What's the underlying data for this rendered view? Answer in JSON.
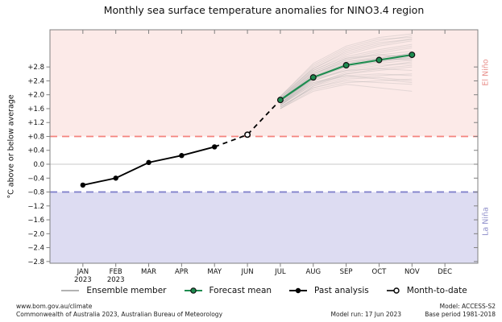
{
  "page": {
    "title": "Monthly sea surface temperature anomalies for NINO3.4 region"
  },
  "chart_data": {
    "type": "line",
    "title": "Monthly sea surface temperature anomalies for NINO3.4 region",
    "xlabel": "",
    "ylabel": "°C above or below average",
    "x_categories": [
      "JAN",
      "FEB",
      "MAR",
      "APR",
      "MAY",
      "JUN",
      "JUL",
      "AUG",
      "SEP",
      "OCT",
      "NOV",
      "DEC"
    ],
    "x_year_sublabels": [
      "2023",
      "2023",
      "",
      "",
      "",
      "",
      "",
      "",
      "",
      "",
      "",
      ""
    ],
    "ytick_values": [
      2.8,
      2.4,
      2.0,
      1.6,
      1.2,
      0.8,
      0.4,
      0.0,
      -0.4,
      -0.8,
      -1.2,
      -1.6,
      -2.0,
      -2.4,
      -2.8
    ],
    "ytick_labels": [
      "+2.8",
      "+2.4",
      "+2.0",
      "+1.6",
      "+1.2",
      "+0.8",
      "+0.4",
      "0.0",
      "−0.4",
      "−0.8",
      "−1.2",
      "−1.6",
      "−2.0",
      "−2.4",
      "−2.8"
    ],
    "ylim": [
      -2.85,
      3.87
    ],
    "grid": "zero-line-only",
    "legend_position": "bottom",
    "colors": {
      "el_nino_fill": "#fceae8",
      "la_nina_fill": "#dddcf2",
      "el_nino_line": "#f4837d",
      "la_nina_line": "#7b7bc9",
      "el_nino_text": "#e8908c",
      "la_nina_text": "#9393cc",
      "forecast_green": "#1e8c50",
      "ensemble_gray": "#aaaaaa",
      "past_black": "#000000",
      "zero_line": "#c8c8c8",
      "axis_border": "#808080"
    },
    "regions": {
      "el_nino": {
        "label": "El Niño",
        "threshold": 0.8
      },
      "la_nina": {
        "label": "La Niña",
        "threshold": -0.8
      }
    },
    "series": [
      {
        "name": "Past analysis",
        "type": "line-marker",
        "x": [
          "JAN",
          "FEB",
          "MAR",
          "APR",
          "MAY"
        ],
        "values": [
          -0.6,
          -0.4,
          0.05,
          0.25,
          0.5
        ]
      },
      {
        "name": "Month-to-date",
        "type": "open-marker",
        "x": [
          "JUN"
        ],
        "values": [
          0.85
        ]
      },
      {
        "name": "Forecast mean",
        "type": "line-marker",
        "x": [
          "JUL",
          "AUG",
          "SEP",
          "OCT",
          "NOV"
        ],
        "values": [
          1.85,
          2.5,
          2.85,
          3.0,
          3.15
        ]
      },
      {
        "name": "Ensemble member",
        "type": "multi-line",
        "x": [
          "JUL",
          "AUG",
          "SEP",
          "OCT",
          "NOV"
        ],
        "members": [
          [
            1.75,
            2.45,
            2.8,
            2.95,
            3.1
          ],
          [
            1.85,
            2.6,
            3.0,
            3.15,
            3.25
          ],
          [
            1.7,
            2.3,
            2.55,
            2.6,
            2.55
          ],
          [
            1.9,
            2.7,
            3.1,
            3.3,
            3.45
          ],
          [
            1.65,
            2.2,
            2.4,
            2.35,
            2.3
          ],
          [
            1.8,
            2.55,
            2.9,
            3.05,
            3.2
          ],
          [
            1.95,
            2.75,
            3.2,
            3.45,
            3.6
          ],
          [
            1.7,
            2.4,
            2.7,
            2.85,
            2.9
          ],
          [
            1.6,
            2.1,
            2.3,
            2.2,
            2.1
          ],
          [
            1.85,
            2.65,
            3.05,
            3.25,
            3.4
          ],
          [
            1.75,
            2.5,
            2.85,
            3.0,
            3.05
          ],
          [
            1.9,
            2.8,
            3.3,
            3.55,
            3.7
          ],
          [
            1.8,
            2.45,
            2.7,
            2.75,
            2.7
          ],
          [
            1.7,
            2.35,
            2.6,
            2.7,
            2.8
          ],
          [
            1.95,
            2.85,
            3.35,
            3.6,
            3.65
          ],
          [
            1.65,
            2.25,
            2.5,
            2.55,
            2.6
          ],
          [
            1.85,
            2.55,
            2.95,
            3.1,
            3.15
          ],
          [
            1.75,
            2.4,
            2.75,
            2.9,
            3.0
          ],
          [
            1.8,
            2.6,
            3.0,
            3.2,
            3.35
          ],
          [
            1.6,
            2.15,
            2.35,
            2.4,
            2.45
          ],
          [
            1.9,
            2.65,
            3.05,
            3.15,
            3.1
          ],
          [
            1.7,
            2.3,
            2.65,
            2.8,
            2.95
          ],
          [
            1.85,
            2.7,
            3.15,
            3.4,
            3.55
          ],
          [
            1.75,
            2.5,
            2.9,
            3.05,
            3.2
          ],
          [
            1.65,
            2.2,
            2.45,
            2.5,
            2.4
          ],
          [
            1.95,
            2.9,
            3.4,
            3.65,
            3.75
          ],
          [
            1.8,
            2.5,
            2.8,
            2.95,
            3.05
          ],
          [
            1.7,
            2.45,
            2.85,
            3.0,
            3.1
          ],
          [
            1.85,
            2.6,
            2.95,
            3.05,
            3.0
          ],
          [
            1.75,
            2.35,
            2.55,
            2.45,
            2.35
          ],
          [
            1.9,
            2.75,
            3.25,
            3.5,
            3.6
          ],
          [
            1.6,
            2.25,
            2.6,
            2.75,
            2.85
          ]
        ]
      }
    ],
    "dashed_connector": {
      "x": [
        "MAY",
        "JUN",
        "JUL"
      ],
      "values": [
        0.5,
        0.85,
        1.85
      ]
    }
  },
  "legend": {
    "items": [
      {
        "label": "Ensemble member"
      },
      {
        "label": "Forecast mean"
      },
      {
        "label": "Past analysis"
      },
      {
        "label": "Month-to-date"
      }
    ]
  },
  "footer": {
    "url": "www.bom.gov.au/climate",
    "copyright": "Commonwealth of Australia 2023, Australian Bureau of Meteorology",
    "model_run": "Model run: 17 Jun 2023",
    "model": "Model: ACCESS-S2",
    "base_period": "Base period 1981-2018"
  }
}
